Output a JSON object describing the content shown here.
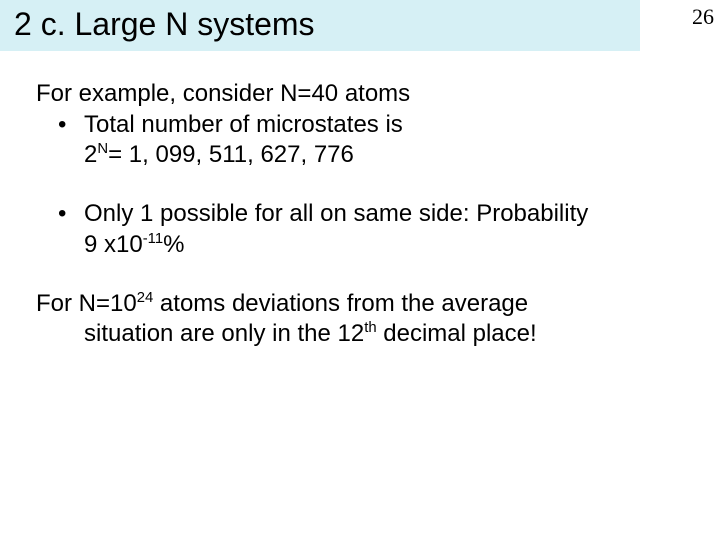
{
  "page_number": "26",
  "title": "2 c. Large N systems",
  "title_bar_bg": "#d6f0f5",
  "content": {
    "p1_line1": "For example, consider N=40 atoms",
    "p1_bullet": "Total number of microstates is",
    "p1_cont_a": "2",
    "p1_cont_sup": "N",
    "p1_cont_b": "= 1, 099, 511, 627, 776",
    "p2_bullet": "Only 1 possible for all on same side:  Probability",
    "p2_cont_a": "9 x10",
    "p2_cont_sup": "-11",
    "p2_cont_b": "%",
    "p3_a": "For N=10",
    "p3_sup": "24",
    "p3_b": " atoms deviations from the average",
    "p3_line2": "situation are only in the 12",
    "p3_sup2": "th",
    "p3_c": " decimal place!"
  },
  "fontsize_title": 32,
  "fontsize_body": 24,
  "fontsize_pagenum": 22
}
